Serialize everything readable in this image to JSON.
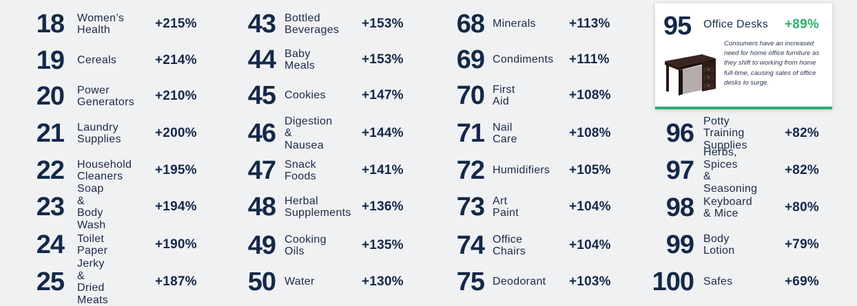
{
  "columns": [
    {
      "rows": [
        {
          "rank": "18",
          "name": "Women’s\nHealth",
          "pct": "+215%"
        },
        {
          "rank": "19",
          "name": "Cereals",
          "pct": "+214%"
        },
        {
          "rank": "20",
          "name": "Power\nGenerators",
          "pct": "+210%"
        },
        {
          "rank": "21",
          "name": "Laundry\nSupplies",
          "pct": "+200%"
        },
        {
          "rank": "22",
          "name": "Household\nCleaners",
          "pct": "+195%"
        },
        {
          "rank": "23",
          "name": "Soap &\nBody Wash",
          "pct": "+194%"
        },
        {
          "rank": "24",
          "name": "Toilet Paper",
          "pct": "+190%"
        },
        {
          "rank": "25",
          "name": "Jerky &\nDried Meats",
          "pct": "+187%"
        }
      ]
    },
    {
      "rows": [
        {
          "rank": "43",
          "name": "Bottled\nBeverages",
          "pct": "+153%"
        },
        {
          "rank": "44",
          "name": "Baby Meals",
          "pct": "+153%"
        },
        {
          "rank": "45",
          "name": "Cookies",
          "pct": "+147%"
        },
        {
          "rank": "46",
          "name": "Digestion\n& Nausea",
          "pct": "+144%"
        },
        {
          "rank": "47",
          "name": "Snack\nFoods",
          "pct": "+141%"
        },
        {
          "rank": "48",
          "name": "Herbal\nSupplements",
          "pct": "+136%"
        },
        {
          "rank": "49",
          "name": "Cooking\nOils",
          "pct": "+135%"
        },
        {
          "rank": "50",
          "name": "Water",
          "pct": "+130%"
        }
      ]
    },
    {
      "rows": [
        {
          "rank": "68",
          "name": "Minerals",
          "pct": "+113%"
        },
        {
          "rank": "69",
          "name": "Condiments",
          "pct": "+111%"
        },
        {
          "rank": "70",
          "name": "First Aid",
          "pct": "+108%"
        },
        {
          "rank": "71",
          "name": "Nail Care",
          "pct": "+108%"
        },
        {
          "rank": "72",
          "name": "Humidifiers",
          "pct": "+105%"
        },
        {
          "rank": "73",
          "name": "Art Paint",
          "pct": "+104%"
        },
        {
          "rank": "74",
          "name": "Office\nChairs",
          "pct": "+104%"
        },
        {
          "rank": "75",
          "name": "Deodorant",
          "pct": "+103%"
        }
      ]
    },
    {
      "rows": [
        {
          "rank": "96",
          "name": "Potty Training\nSupplies",
          "pct": "+82%"
        },
        {
          "rank": "97",
          "name": "Herbs, Spices\n& Seasoning",
          "pct": "+82%"
        },
        {
          "rank": "98",
          "name": "Keyboard\n& Mice",
          "pct": "+80%"
        },
        {
          "rank": "99",
          "name": "Body Lotion",
          "pct": "+79%"
        },
        {
          "rank": "100",
          "name": "Safes",
          "pct": "+69%"
        }
      ]
    }
  ],
  "highlight": {
    "rank": "95",
    "name": "Office Desks",
    "pct": "+89%",
    "description": "Consumers have an increased need for home office furniture as they shift to working from home full-time, causing sales of office desks to surge.",
    "image_icon": "office-desk-icon",
    "accent_color": "#2eaf6e"
  },
  "colors": {
    "background": "#f0f1f3",
    "text": "#142849",
    "accent": "#2eaf6e"
  }
}
